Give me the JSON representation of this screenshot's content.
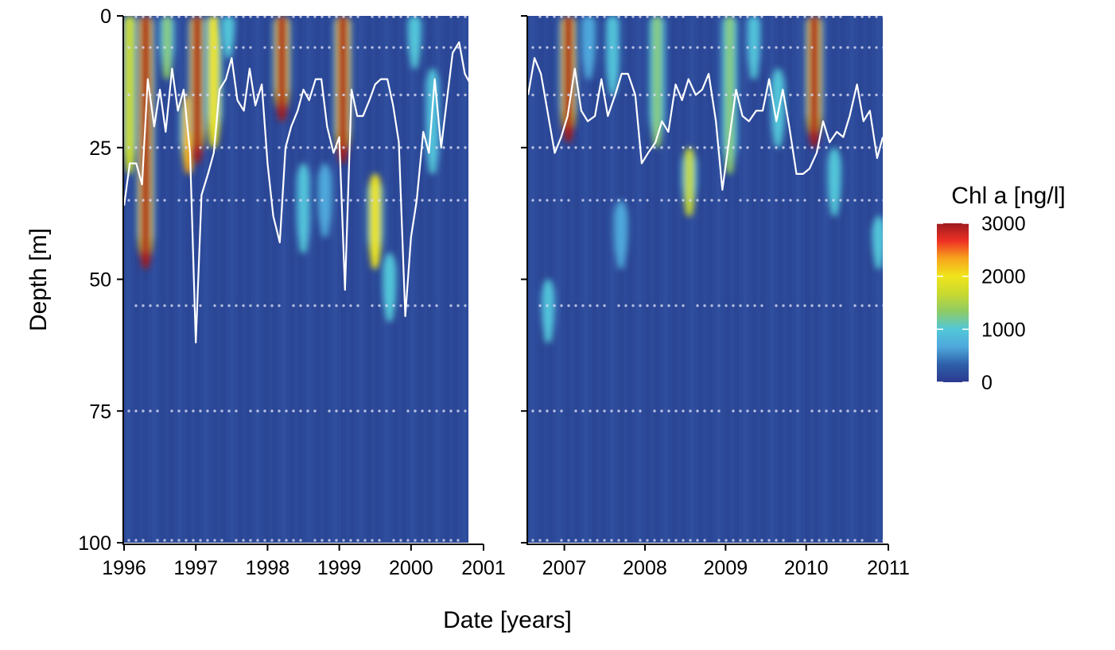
{
  "chart_data": {
    "type": "heatmap",
    "panels": [
      {
        "name": "1996-2000",
        "xlim": [
          1996,
          2000.8
        ],
        "x_ticks": [
          1996,
          1997,
          1998,
          1999,
          2000,
          2001
        ],
        "x_tick_labels": [
          "1996",
          "1997",
          "1998",
          "1999",
          "2000",
          "2001"
        ],
        "ylim": [
          0,
          100
        ],
        "y_ticks": [
          0,
          25,
          50,
          75,
          100
        ],
        "y_tick_labels": [
          "0",
          "25",
          "50",
          "75",
          "100"
        ],
        "blooms": [
          {
            "t": 1996.08,
            "d0": 0,
            "d1": 30,
            "v": 1800
          },
          {
            "t": 1996.3,
            "d0": 0,
            "d1": 48,
            "v": 3000
          },
          {
            "t": 1996.6,
            "d0": 0,
            "d1": 12,
            "v": 1200
          },
          {
            "t": 1996.9,
            "d0": 15,
            "d1": 30,
            "v": 2200
          },
          {
            "t": 1997.02,
            "d0": 0,
            "d1": 28,
            "v": 3000
          },
          {
            "t": 1997.25,
            "d0": 0,
            "d1": 25,
            "v": 2000
          },
          {
            "t": 1997.45,
            "d0": 0,
            "d1": 8,
            "v": 1000
          },
          {
            "t": 1998.2,
            "d0": 0,
            "d1": 20,
            "v": 3000
          },
          {
            "t": 1998.5,
            "d0": 28,
            "d1": 45,
            "v": 900
          },
          {
            "t": 1998.8,
            "d0": 28,
            "d1": 42,
            "v": 800
          },
          {
            "t": 1999.05,
            "d0": 0,
            "d1": 28,
            "v": 3000
          },
          {
            "t": 1999.5,
            "d0": 30,
            "d1": 48,
            "v": 1900
          },
          {
            "t": 1999.7,
            "d0": 45,
            "d1": 58,
            "v": 1000
          },
          {
            "t": 2000.05,
            "d0": 0,
            "d1": 10,
            "v": 1100
          },
          {
            "t": 2000.3,
            "d0": 10,
            "d1": 30,
            "v": 900
          }
        ],
        "mixing_depth_line": {
          "x": [
            1996.0,
            1996.08,
            1996.17,
            1996.25,
            1996.33,
            1996.42,
            1996.5,
            1996.58,
            1996.67,
            1996.75,
            1996.83,
            1996.92,
            1997.0,
            1997.08,
            1997.17,
            1997.25,
            1997.33,
            1997.42,
            1997.5,
            1997.58,
            1997.67,
            1997.75,
            1997.83,
            1997.92,
            1998.0,
            1998.08,
            1998.17,
            1998.25,
            1998.33,
            1998.42,
            1998.5,
            1998.58,
            1998.67,
            1998.75,
            1998.83,
            1998.92,
            1999.0,
            1999.08,
            1999.17,
            1999.25,
            1999.33,
            1999.42,
            1999.5,
            1999.58,
            1999.67,
            1999.75,
            1999.83,
            1999.92,
            2000.0,
            2000.08,
            2000.17,
            2000.25,
            2000.33,
            2000.42,
            2000.5,
            2000.58,
            2000.67,
            2000.75,
            2000.83
          ],
          "y": [
            36,
            28,
            28,
            32,
            12,
            21,
            14,
            22,
            10,
            18,
            14,
            26,
            62,
            34,
            30,
            26,
            14,
            12,
            8,
            16,
            18,
            10,
            17,
            13,
            28,
            38,
            43,
            25,
            21,
            18,
            14,
            16,
            12,
            12,
            21,
            26,
            23,
            52,
            14,
            19,
            19,
            16,
            13,
            12,
            12,
            17,
            24,
            57,
            42,
            35,
            22,
            26,
            12,
            25,
            16,
            7,
            5,
            11,
            13
          ]
        },
        "sample_depths": [
          0,
          6,
          15,
          25,
          35,
          55,
          75,
          100
        ]
      },
      {
        "name": "2006-2010",
        "xlim": [
          2006.55,
          2010.95
        ],
        "x_ticks": [
          2007,
          2008,
          2009,
          2010,
          2011
        ],
        "x_tick_labels": [
          "2007",
          "2008",
          "2009",
          "2010",
          "2011"
        ],
        "ylim": [
          0,
          100
        ],
        "blooms": [
          {
            "t": 2007.05,
            "d0": 0,
            "d1": 24,
            "v": 3000
          },
          {
            "t": 2007.3,
            "d0": 0,
            "d1": 12,
            "v": 800
          },
          {
            "t": 2007.6,
            "d0": 0,
            "d1": 15,
            "v": 900
          },
          {
            "t": 2007.7,
            "d0": 35,
            "d1": 48,
            "v": 800
          },
          {
            "t": 2008.15,
            "d0": 0,
            "d1": 25,
            "v": 1300
          },
          {
            "t": 2008.55,
            "d0": 25,
            "d1": 38,
            "v": 1700
          },
          {
            "t": 2009.05,
            "d0": 0,
            "d1": 30,
            "v": 1300
          },
          {
            "t": 2009.35,
            "d0": 0,
            "d1": 12,
            "v": 900
          },
          {
            "t": 2009.65,
            "d0": 10,
            "d1": 25,
            "v": 1000
          },
          {
            "t": 2010.1,
            "d0": 0,
            "d1": 25,
            "v": 3000
          },
          {
            "t": 2010.35,
            "d0": 25,
            "d1": 38,
            "v": 1100
          },
          {
            "t": 2010.9,
            "d0": 38,
            "d1": 48,
            "v": 1000
          },
          {
            "t": 2006.8,
            "d0": 50,
            "d1": 62,
            "v": 900
          }
        ],
        "mixing_depth_line": {
          "x": [
            2006.55,
            2006.63,
            2006.71,
            2006.79,
            2006.88,
            2006.96,
            2007.04,
            2007.13,
            2007.21,
            2007.29,
            2007.38,
            2007.46,
            2007.54,
            2007.63,
            2007.71,
            2007.79,
            2007.88,
            2007.96,
            2008.04,
            2008.13,
            2008.21,
            2008.29,
            2008.38,
            2008.46,
            2008.54,
            2008.63,
            2008.71,
            2008.79,
            2008.88,
            2008.96,
            2009.04,
            2009.13,
            2009.21,
            2009.29,
            2009.38,
            2009.46,
            2009.54,
            2009.63,
            2009.71,
            2009.79,
            2009.88,
            2009.96,
            2010.04,
            2010.13,
            2010.21,
            2010.29,
            2010.38,
            2010.46,
            2010.54,
            2010.63,
            2010.71,
            2010.79,
            2010.88,
            2010.95
          ],
          "y": [
            15,
            8,
            11,
            18,
            26,
            23,
            19,
            10,
            18,
            20,
            19,
            12,
            19,
            15,
            11,
            11,
            15,
            28,
            26,
            24,
            20,
            22,
            13,
            16,
            12,
            15,
            14,
            11,
            20,
            33,
            24,
            14,
            19,
            20,
            18,
            18,
            12,
            20,
            14,
            21,
            30,
            30,
            29,
            26,
            20,
            24,
            22,
            23,
            19,
            13,
            20,
            18,
            27,
            23
          ]
        },
        "sample_depths": [
          0,
          6,
          15,
          25,
          35,
          55,
          75,
          100
        ]
      }
    ],
    "xlabel": "Date [years]",
    "ylabel": "Depth [m]",
    "legend": {
      "title": "Chl a [ng/l]",
      "placement": "right",
      "range": [
        0,
        3000
      ],
      "breaks": [
        0,
        1000,
        2000,
        3000
      ],
      "break_labels": [
        "0",
        "1000",
        "2000",
        "3000"
      ],
      "colors": [
        "#2b3990",
        "#2e5fa8",
        "#4fa8dc",
        "#52c7d9",
        "#8dcb66",
        "#c8d930",
        "#f0e51c",
        "#f7a51d",
        "#ee3124",
        "#9e1b1f"
      ]
    },
    "colors": {
      "background": "#2d4a9a",
      "line": "#ffffff",
      "points": "#d6d9f2"
    }
  }
}
